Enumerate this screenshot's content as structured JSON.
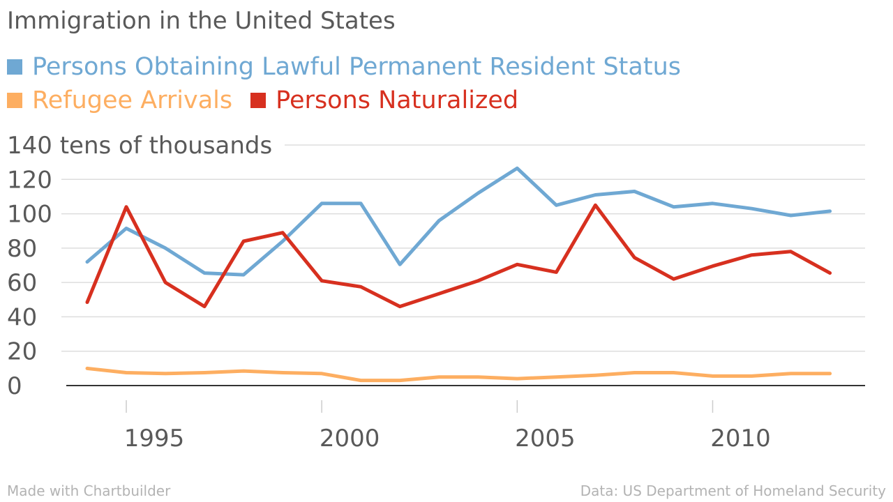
{
  "title": "Immigration in the United States",
  "footer": {
    "left": "Made with Chartbuilder",
    "right": "Data: US Department of Homeland Security"
  },
  "chart_data": {
    "type": "line",
    "title": "Immigration in the United States",
    "ylabel_suffix": "tens of thousands",
    "ylim": [
      0,
      140
    ],
    "yticks": [
      0,
      20,
      40,
      60,
      80,
      100,
      120,
      140
    ],
    "xlim": [
      1994,
      2013.9
    ],
    "xticks": [
      1995,
      2000,
      2005,
      2010
    ],
    "grid": true,
    "legend_position": "top-left",
    "x": [
      1994,
      1995,
      1996,
      1997,
      1998,
      1999,
      2000,
      2001,
      2002,
      2003,
      2004,
      2005,
      2006,
      2007,
      2008,
      2009,
      2010,
      2011,
      2012,
      2013
    ],
    "series": [
      {
        "name": "Persons Obtaining Lawful Permanent Resident Status",
        "color": "#6fa8d3",
        "values": [
          72,
          91.5,
          80,
          65.5,
          64.5,
          84,
          106,
          106,
          70.5,
          96,
          112,
          126.5,
          105,
          111,
          113,
          104,
          106,
          103,
          99,
          101.5
        ]
      },
      {
        "name": "Refugee Arrivals",
        "color": "#fdae61",
        "values": [
          10,
          7.5,
          7,
          7.5,
          8.5,
          7.5,
          7,
          3,
          3,
          5,
          5,
          4,
          5,
          6,
          7.5,
          7.5,
          5.5,
          5.5,
          7,
          7
        ]
      },
      {
        "name": "Persons Naturalized",
        "color": "#d7301f",
        "values": [
          48.5,
          104,
          60,
          46,
          84,
          89,
          61,
          57.5,
          46,
          53.5,
          61,
          70.5,
          66,
          105,
          74.5,
          62,
          69.5,
          76,
          78,
          65.5
        ]
      }
    ]
  }
}
